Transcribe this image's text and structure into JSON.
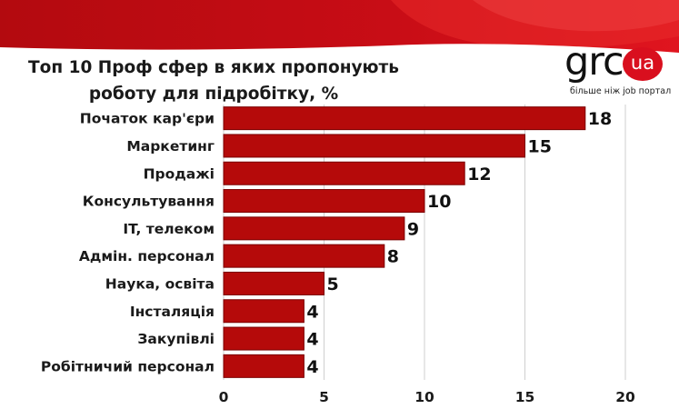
{
  "brand": {
    "name": "grc",
    "badge": "ua",
    "tagline": "більше ніж job портал",
    "color": "#d90f1e"
  },
  "chart_data": {
    "type": "bar",
    "orientation": "horizontal",
    "title_lines": [
      "Топ 10 Проф сфер в яких пропонують",
      "роботу для підробітку, %"
    ],
    "categories": [
      "Початок кар'єри",
      "Маркетинг",
      "Продажі",
      "Консультування",
      "IT, телеком",
      "Адмін. персонал",
      "Наука, освіта",
      "Інсталяція",
      "Закупівлі",
      "Робітничий персонал"
    ],
    "values": [
      18,
      15,
      12,
      10,
      9,
      8,
      5,
      4,
      4,
      4
    ],
    "xticks": [
      0,
      5,
      10,
      15,
      20
    ],
    "xlim": [
      0,
      20
    ],
    "grid": "vertical",
    "bar_color": "#b50a0a",
    "bar_edge_color": "#7a0000",
    "xlabel": "",
    "ylabel": ""
  }
}
